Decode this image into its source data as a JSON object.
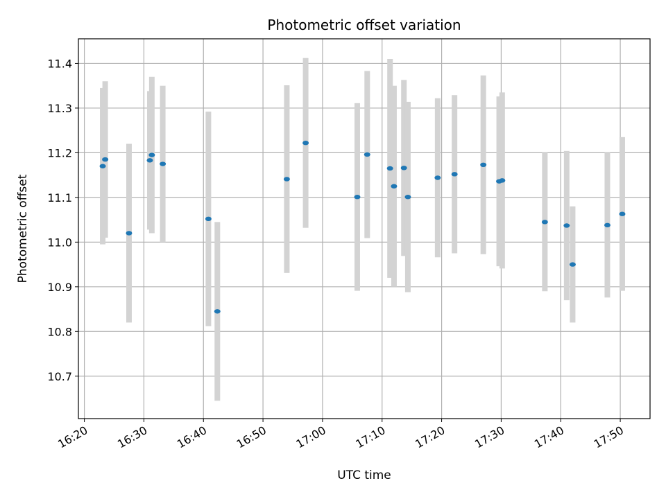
{
  "chart_data": {
    "type": "scatter",
    "title": "Photometric offset variation",
    "xlabel": "UTC time",
    "ylabel": "Photometric offset",
    "xlim": [
      "16:19:00",
      "17:55:00"
    ],
    "ylim": [
      10.605,
      11.455
    ],
    "grid": true,
    "x_ticks": [
      "16:20",
      "16:30",
      "16:40",
      "16:50",
      "17:00",
      "17:10",
      "17:20",
      "17:30",
      "17:40",
      "17:50"
    ],
    "y_ticks": [
      "10.7",
      "10.8",
      "10.9",
      "11.0",
      "11.1",
      "11.2",
      "11.3",
      "11.4"
    ],
    "colors": {
      "point": "#1f77b4",
      "errorbar": "#d3d3d3",
      "grid": "#b0b0b0"
    },
    "points": [
      {
        "x": "16:23:05",
        "y": 11.17,
        "err": 0.175
      },
      {
        "x": "16:23:30",
        "y": 11.185,
        "err": 0.175
      },
      {
        "x": "16:27:30",
        "y": 11.02,
        "err": 0.2
      },
      {
        "x": "16:31:00",
        "y": 11.183,
        "err": 0.155
      },
      {
        "x": "16:31:20",
        "y": 11.195,
        "err": 0.175
      },
      {
        "x": "16:33:10",
        "y": 11.175,
        "err": 0.175
      },
      {
        "x": "16:40:50",
        "y": 11.052,
        "err": 0.24
      },
      {
        "x": "16:42:20",
        "y": 10.845,
        "err": 0.2
      },
      {
        "x": "16:54:00",
        "y": 11.141,
        "err": 0.21
      },
      {
        "x": "16:57:10",
        "y": 11.222,
        "err": 0.19
      },
      {
        "x": "17:05:50",
        "y": 11.101,
        "err": 0.21
      },
      {
        "x": "17:07:30",
        "y": 11.196,
        "err": 0.187
      },
      {
        "x": "17:11:20",
        "y": 11.165,
        "err": 0.245
      },
      {
        "x": "17:12:00",
        "y": 11.125,
        "err": 0.225
      },
      {
        "x": "17:13:40",
        "y": 11.166,
        "err": 0.197
      },
      {
        "x": "17:14:20",
        "y": 11.101,
        "err": 0.213
      },
      {
        "x": "17:19:20",
        "y": 11.144,
        "err": 0.178
      },
      {
        "x": "17:22:10",
        "y": 11.152,
        "err": 0.177
      },
      {
        "x": "17:27:00",
        "y": 11.173,
        "err": 0.2
      },
      {
        "x": "17:29:40",
        "y": 11.136,
        "err": 0.19
      },
      {
        "x": "17:30:10",
        "y": 11.138,
        "err": 0.197
      },
      {
        "x": "17:37:20",
        "y": 11.045,
        "err": 0.155
      },
      {
        "x": "17:41:00",
        "y": 11.037,
        "err": 0.167
      },
      {
        "x": "17:42:00",
        "y": 10.95,
        "err": 0.13
      },
      {
        "x": "17:47:50",
        "y": 11.038,
        "err": 0.162
      },
      {
        "x": "17:50:20",
        "y": 11.063,
        "err": 0.172
      }
    ]
  }
}
